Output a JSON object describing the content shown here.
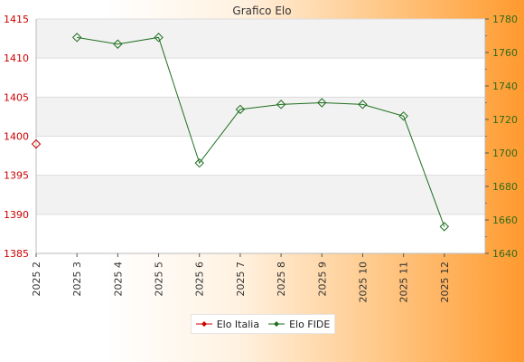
{
  "chart_data": {
    "type": "line",
    "title": "Grafico Elo",
    "x": [
      "2025 2",
      "2025 3",
      "2025 4",
      "2025 5",
      "2025 6",
      "2025 7",
      "2025 8",
      "2025 9",
      "2025 10",
      "2025 11",
      "2025 12"
    ],
    "y_left": {
      "range": [
        1385,
        1415
      ],
      "ticks": [
        1385,
        1390,
        1395,
        1400,
        1405,
        1410,
        1415
      ],
      "color": "#cc0000"
    },
    "y_right": {
      "range": [
        1640,
        1780
      ],
      "ticks": [
        1640,
        1660,
        1680,
        1700,
        1720,
        1740,
        1760,
        1780
      ],
      "color": "#2e6b1a"
    },
    "series": [
      {
        "name": "Elo Italia",
        "axis": "left",
        "color": "#cc0000",
        "values": [
          1399,
          null,
          null,
          null,
          null,
          null,
          null,
          null,
          null,
          null,
          null
        ]
      },
      {
        "name": "Elo FIDE",
        "axis": "right",
        "color": "#1f6f1f",
        "values": [
          null,
          1769,
          1765,
          1769,
          1694,
          1726,
          1729,
          1730,
          1729,
          1722,
          1656
        ]
      }
    ],
    "grid": true,
    "legend_position": "bottom"
  }
}
